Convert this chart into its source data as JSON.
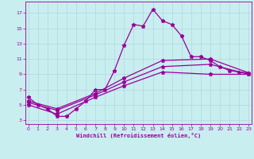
{
  "xlabel": "Windchill (Refroidissement éolien,°C)",
  "line_color": "#990099",
  "bg_color": "#c8eef0",
  "grid_color": "#b0d8dc",
  "lines": [
    {
      "x": [
        0,
        1,
        2,
        3,
        4,
        5,
        6,
        7,
        8,
        9,
        10,
        11,
        12,
        13,
        14,
        15,
        16,
        17,
        18,
        19,
        20,
        21,
        22,
        23
      ],
      "y": [
        6.0,
        5.0,
        4.5,
        3.5,
        3.5,
        4.5,
        5.5,
        7.0,
        7.0,
        9.5,
        12.8,
        15.5,
        15.3,
        17.5,
        16.0,
        15.5,
        14.0,
        11.3,
        11.3,
        10.8,
        10.0,
        9.5,
        9.3,
        9.2
      ]
    },
    {
      "x": [
        0,
        3,
        7,
        10,
        14,
        19,
        23
      ],
      "y": [
        5.5,
        4.5,
        6.5,
        8.5,
        10.8,
        11.0,
        9.2
      ]
    },
    {
      "x": [
        0,
        3,
        7,
        10,
        14,
        19,
        23
      ],
      "y": [
        5.3,
        4.3,
        6.3,
        8.0,
        10.0,
        10.3,
        9.0
      ]
    },
    {
      "x": [
        0,
        3,
        7,
        10,
        14,
        19,
        23
      ],
      "y": [
        5.0,
        3.8,
        6.0,
        7.5,
        9.3,
        9.0,
        9.0
      ]
    }
  ],
  "xlim": [
    -0.3,
    23.3
  ],
  "ylim": [
    2.5,
    18.5
  ],
  "yticks": [
    3,
    5,
    7,
    9,
    11,
    13,
    15,
    17
  ],
  "xticks": [
    0,
    1,
    2,
    3,
    4,
    5,
    6,
    7,
    8,
    9,
    10,
    11,
    12,
    13,
    14,
    15,
    16,
    17,
    18,
    19,
    20,
    21,
    22,
    23
  ],
  "marker": "*",
  "markersize": 3.5,
  "linewidth": 0.9
}
